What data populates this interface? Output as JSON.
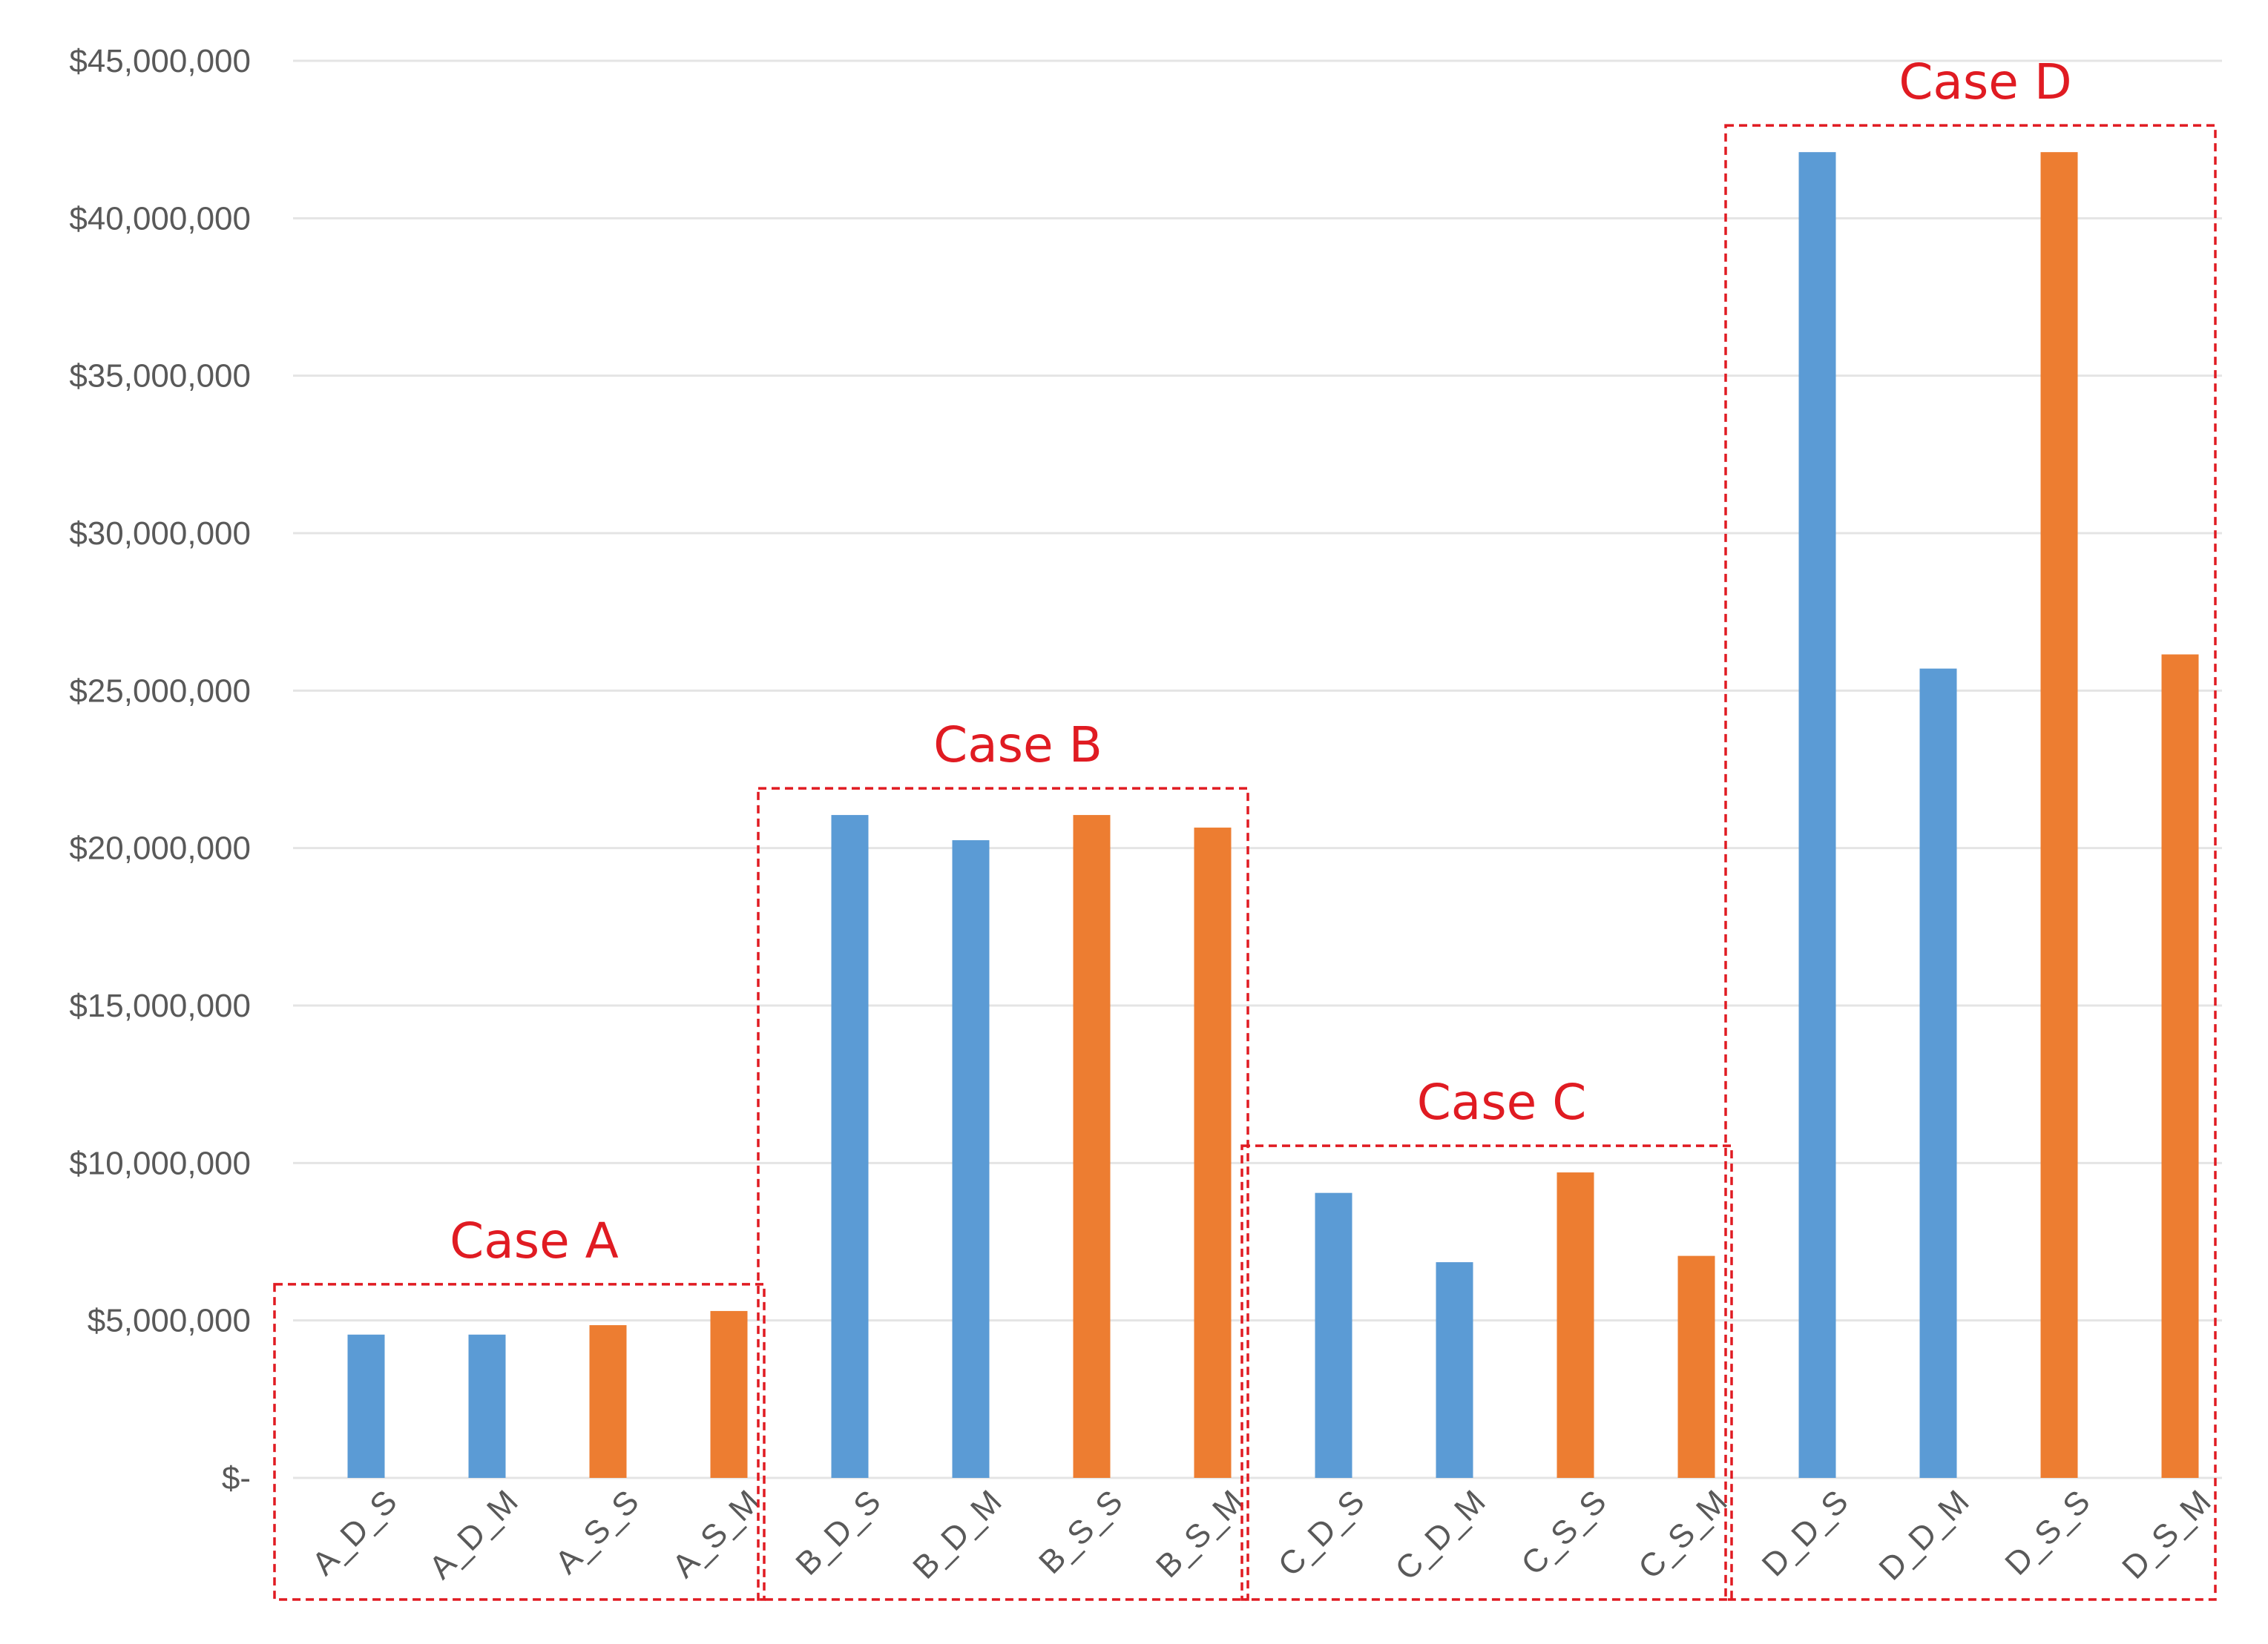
{
  "chart_data": {
    "type": "bar",
    "title": "",
    "xlabel": "",
    "ylabel": "",
    "ylim": [
      0,
      45000000
    ],
    "grid": true,
    "yticks": [
      {
        "value": 0,
        "label": "$-"
      },
      {
        "value": 5000000,
        "label": "$5,000,000"
      },
      {
        "value": 10000000,
        "label": "$10,000,000"
      },
      {
        "value": 15000000,
        "label": "$15,000,000"
      },
      {
        "value": 20000000,
        "label": "$20,000,000"
      },
      {
        "value": 25000000,
        "label": "$25,000,000"
      },
      {
        "value": 30000000,
        "label": "$30,000,000"
      },
      {
        "value": 35000000,
        "label": "$35,000,000"
      },
      {
        "value": 40000000,
        "label": "$40,000,000"
      },
      {
        "value": 45000000,
        "label": "$45,000,000"
      }
    ],
    "colors": {
      "blue": "#5b9bd5",
      "orange": "#ed7d31",
      "annotation": "#e01b22",
      "grid": "#e4e4e4",
      "tick_text": "#595959"
    },
    "categories": [
      "A_D_S",
      "A_D_M",
      "A_S_S",
      "A_S_M",
      "B_D_S",
      "B_D_M",
      "B_S_S",
      "B_S_M",
      "C_D_S",
      "C_D_M",
      "C_S_S",
      "C_S_M",
      "D_D_S",
      "D_D_M",
      "D_S_S",
      "D_S_M"
    ],
    "values": [
      4550000,
      4550000,
      4850000,
      5300000,
      21050000,
      20250000,
      21050000,
      20650000,
      9050000,
      6850000,
      9700000,
      7050000,
      42100000,
      25700000,
      42100000,
      26150000
    ],
    "bar_colors": [
      "blue",
      "blue",
      "orange",
      "orange",
      "blue",
      "blue",
      "orange",
      "orange",
      "blue",
      "blue",
      "orange",
      "orange",
      "blue",
      "blue",
      "orange",
      "orange"
    ],
    "groups": [
      {
        "label": "Case A",
        "categories": [
          "A_D_S",
          "A_D_M",
          "A_S_S",
          "A_S_M"
        ]
      },
      {
        "label": "Case B",
        "categories": [
          "B_D_S",
          "B_D_M",
          "B_S_S",
          "B_S_M"
        ]
      },
      {
        "label": "Case C",
        "categories": [
          "C_D_S",
          "C_D_M",
          "C_S_S",
          "C_S_M"
        ]
      },
      {
        "label": "Case D",
        "categories": [
          "D_D_S",
          "D_D_M",
          "D_S_S",
          "D_S_M"
        ]
      }
    ]
  }
}
